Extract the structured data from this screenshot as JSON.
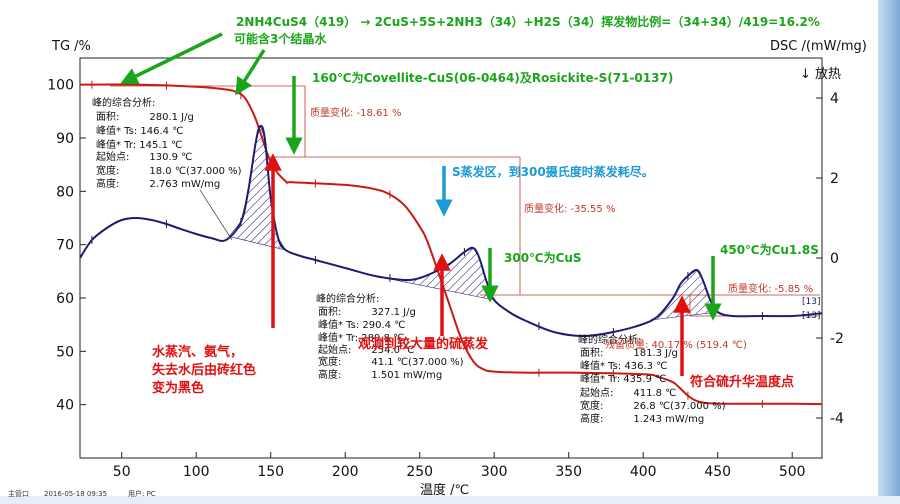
{
  "chart_data": {
    "type": "line",
    "xlabel": "温度 /℃",
    "ylabel_left": "TG /%",
    "ylabel_right": "DSC /(mW/mg)",
    "exo_label": "↓ 放热",
    "xlim": [
      22,
      520
    ],
    "ylim_left": [
      30,
      105
    ],
    "ylim_right": [
      -5,
      5
    ],
    "x_ticks": [
      50,
      100,
      150,
      200,
      250,
      300,
      350,
      400,
      450,
      500
    ],
    "y_ticks_left": [
      40,
      50,
      60,
      70,
      80,
      90,
      100
    ],
    "y_ticks_right": [
      4,
      2,
      0,
      -2,
      -4
    ],
    "series": [
      {
        "name": "TG",
        "axis": "left",
        "color": "#c81818",
        "x": [
          22,
          60,
          100,
          120,
          127,
          133,
          140,
          150,
          160,
          165,
          200,
          220,
          230,
          240,
          250,
          255,
          262,
          270,
          278,
          286,
          293,
          300,
          320,
          350,
          400,
          410,
          420,
          425,
          430,
          435,
          440,
          450,
          480,
          500,
          520
        ],
        "y": [
          100,
          100,
          99.6,
          99.1,
          98.6,
          97.4,
          93.5,
          85.5,
          81.9,
          81.7,
          81.2,
          80.4,
          79.4,
          77.3,
          73.4,
          70.7,
          65.2,
          58.7,
          52.3,
          48.1,
          46.6,
          46.2,
          46.0,
          46.0,
          45.7,
          45.2,
          44.2,
          43.0,
          41.7,
          40.8,
          40.4,
          40.2,
          40.17,
          40.17,
          40.1
        ]
      },
      {
        "name": "DSC",
        "axis": "right",
        "color": "#1c1c70",
        "x": [
          22,
          30,
          40,
          50,
          60,
          70,
          80,
          90,
          100,
          110,
          120,
          130,
          135,
          140,
          143,
          146,
          150,
          155,
          160,
          170,
          180,
          200,
          220,
          240,
          250,
          260,
          270,
          280,
          286,
          290,
          295,
          300,
          310,
          320,
          340,
          360,
          380,
          400,
          410,
          420,
          425,
          430,
          436,
          440,
          445,
          450,
          460,
          480,
          500,
          520
        ],
        "y": [
          0.0,
          0.45,
          0.75,
          0.95,
          1.0,
          0.95,
          0.85,
          0.72,
          0.6,
          0.5,
          0.45,
          0.9,
          1.7,
          2.9,
          3.3,
          3.0,
          1.5,
          0.5,
          0.2,
          0.05,
          -0.05,
          -0.25,
          -0.45,
          -0.55,
          -0.5,
          -0.35,
          -0.15,
          0.15,
          0.25,
          0.0,
          -0.6,
          -1.05,
          -1.35,
          -1.55,
          -1.85,
          -1.95,
          -1.85,
          -1.65,
          -1.45,
          -1.0,
          -0.65,
          -0.45,
          -0.3,
          -0.55,
          -1.05,
          -1.35,
          -1.45,
          -1.45,
          -1.45,
          -1.38
        ]
      }
    ],
    "peak_info": [
      {
        "header": "峰的综合分析:",
        "area": "面积:　　　280.1 J/g",
        "ts": "峰值* Ts: 146.4 ℃",
        "tr": "峰值* Tr:  145.1 ℃",
        "onset": "起始点:　　130.9 ℃",
        "width": "宽度:　　　18.0 ℃(37.000 %)",
        "height": "高度:　　　2.763 mW/mg"
      },
      {
        "header": "峰的综合分析:",
        "area": "面积:　　　327.1 J/g",
        "ts": "峰值* Ts: 290.4 ℃",
        "tr": "峰值* Tr:  289.8 ℃",
        "onset": "起始点:　　254.0 ℃",
        "width": "宽度:　　　41.1 ℃(37.000 %)",
        "height": "高度:　　　1.501 mW/mg"
      },
      {
        "header": "峰的综合分析:",
        "area": "面积:　　　181.3 J/g",
        "ts": "峰值* Ts: 436.3 ℃",
        "tr": "峰值* Tr:  435.9 ℃",
        "onset": "起始点:　　411.8 ℃",
        "width": "宽度:　　　26.8 ℃(37.000 %)",
        "height": "高度:　　　1.243 mW/mg"
      }
    ],
    "mass_changes": [
      "质量变化: -18.61 %",
      "质量变化: -35.55 %",
      "质量变化: -5.85 %"
    ],
    "residual": "残留质量: 40.17 % (519.4 ℃)",
    "curve_markers": [
      "[13]",
      "[13]"
    ]
  },
  "annotations": {
    "reaction": "2NH4CuS4（419） → 2CuS+5S+2NH3（34）+H2S（34）挥发物比例=（34+34）/419=16.2%",
    "crystal_water": "可能含3个结晶水",
    "t160": "160℃为Covellite-CuS(06-0464)及Rosickite-S(71-0137)",
    "s_evap": "S蒸发区，到300摄氏度时蒸发耗尽。",
    "t300": "300℃为CuS",
    "t450": "450℃为Cu1.8S",
    "water_line1": "水蒸汽、氨气，",
    "water_line2": "失去水后由砖红色",
    "water_line3": "变为黑色",
    "sulfur_obs": "观测到较大量的硫蒸发",
    "sublimation": "符合硫升华温度点"
  },
  "footer": {
    "operator_label": "主管口",
    "timestamp": "2016-05-18 09:35",
    "user_label": "用户: PC"
  },
  "colors": {
    "tg": "#c81818",
    "dsc": "#1c1c70",
    "green": "#1aa51a",
    "red": "#e01010",
    "blue": "#1a9ad6"
  }
}
